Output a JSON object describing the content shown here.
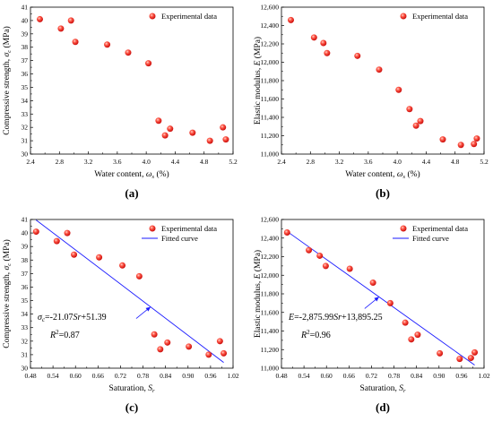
{
  "chart_data": [
    {
      "type": "scatter",
      "panel_label": "(a)",
      "xlabel_main": "Water content, ",
      "xlabel_symbol": "ω",
      "xlabel_sub": "s",
      "xlabel_unit": " (%)",
      "ylabel_main": "Compressive strength, ",
      "ylabel_symbol": "σ",
      "ylabel_sub": "c",
      "ylabel_unit": " (MPa)",
      "xlim": [
        2.4,
        5.2
      ],
      "ylim": [
        30,
        41
      ],
      "xticks": [
        "2.4",
        "2.8",
        "3.2",
        "3.6",
        "4.0",
        "4.4",
        "4.8",
        "5.2"
      ],
      "yticks": [
        "30",
        "31",
        "32",
        "33",
        "34",
        "35",
        "36",
        "37",
        "38",
        "39",
        "40",
        "41"
      ],
      "legend": [
        "Experimental data"
      ],
      "legend_position": "top-right",
      "series": [
        {
          "name": "Experimental data",
          "x": [
            2.53,
            2.82,
            2.96,
            3.02,
            3.46,
            3.75,
            4.03,
            4.17,
            4.26,
            4.33,
            4.64,
            4.88,
            5.06,
            5.1
          ],
          "y": [
            40.1,
            39.4,
            40.0,
            38.4,
            38.2,
            37.6,
            36.8,
            32.5,
            31.4,
            31.9,
            31.6,
            31.0,
            32.0,
            31.1
          ]
        }
      ]
    },
    {
      "type": "scatter",
      "panel_label": "(b)",
      "xlabel_main": "Water content, ",
      "xlabel_symbol": "ω",
      "xlabel_sub": "s",
      "xlabel_unit": " (%)",
      "ylabel_main": "Elastic modulus, ",
      "ylabel_symbol": "E",
      "ylabel_sub": "",
      "ylabel_unit": " (MPa)",
      "xlim": [
        2.4,
        5.2
      ],
      "ylim": [
        11000,
        12600
      ],
      "xticks": [
        "2.4",
        "2.8",
        "3.2",
        "3.6",
        "4.0",
        "4.4",
        "4.8",
        "5.2"
      ],
      "yticks": [
        "11,000",
        "11,200",
        "11,400",
        "11,600",
        "11,800",
        "12,000",
        "12,200",
        "12,400",
        "12,600"
      ],
      "legend": [
        "Experimental data"
      ],
      "legend_position": "top-right",
      "series": [
        {
          "name": "Experimental data",
          "x": [
            2.53,
            2.85,
            2.98,
            3.03,
            3.45,
            3.75,
            4.02,
            4.17,
            4.26,
            4.32,
            4.63,
            4.88,
            5.06,
            5.1
          ],
          "y": [
            12460,
            12270,
            12210,
            12100,
            12070,
            11920,
            11700,
            11490,
            11310,
            11360,
            11160,
            11100,
            11110,
            11170
          ]
        }
      ]
    },
    {
      "type": "scatter",
      "panel_label": "(c)",
      "xlabel_main": "Saturation, ",
      "xlabel_symbol": "S",
      "xlabel_sub": "r",
      "xlabel_unit": "",
      "ylabel_main": "Compressive strength, ",
      "ylabel_symbol": "σ",
      "ylabel_sub": "c",
      "ylabel_unit": " (MPa)",
      "xlim": [
        0.48,
        1.02
      ],
      "ylim": [
        30,
        41
      ],
      "xticks": [
        "0.48",
        "0.54",
        "0.60",
        "0.66",
        "0.72",
        "0.78",
        "0.84",
        "0.90",
        "0.96",
        "1.02"
      ],
      "yticks": [
        "30",
        "31",
        "32",
        "33",
        "34",
        "35",
        "36",
        "37",
        "38",
        "39",
        "40",
        "41"
      ],
      "legend": [
        "Experimental data",
        "Fitted curve"
      ],
      "legend_position": "top-right",
      "fit": {
        "slope": -21.07,
        "intercept": 51.39,
        "x_range": [
          0.495,
          0.995
        ]
      },
      "equation_text": "=-21.07",
      "equation_tail": "+51.39",
      "r2_text": "=0.87",
      "series": [
        {
          "name": "Experimental data",
          "x": [
            0.495,
            0.55,
            0.578,
            0.596,
            0.663,
            0.725,
            0.77,
            0.81,
            0.826,
            0.845,
            0.902,
            0.955,
            0.985,
            0.995
          ],
          "y": [
            40.1,
            39.4,
            40.0,
            38.4,
            38.2,
            37.6,
            36.8,
            32.5,
            31.4,
            31.9,
            31.6,
            31.0,
            32.0,
            31.1
          ]
        }
      ]
    },
    {
      "type": "scatter",
      "panel_label": "(d)",
      "xlabel_main": "Saturation, ",
      "xlabel_symbol": "S",
      "xlabel_sub": "r",
      "xlabel_unit": "",
      "ylabel_main": "Elastic modulus, ",
      "ylabel_symbol": "E",
      "ylabel_sub": "",
      "ylabel_unit": " (MPa)",
      "xlim": [
        0.48,
        1.02
      ],
      "ylim": [
        11000,
        12600
      ],
      "xticks": [
        "0.48",
        "0.54",
        "0.60",
        "0.66",
        "0.72",
        "0.78",
        "0.84",
        "0.90",
        "0.96",
        "1.02"
      ],
      "yticks": [
        "11,000",
        "11,200",
        "11,400",
        "11,600",
        "11,800",
        "12,000",
        "12,200",
        "12,400",
        "12,600"
      ],
      "legend": [
        "Experimental data",
        "Fitted curve"
      ],
      "legend_position": "top-right",
      "fit": {
        "slope": -2875.99,
        "intercept": 13895.25,
        "x_range": [
          0.495,
          0.995
        ]
      },
      "equation_text": "=-2,875.99",
      "equation_tail": "+13,895.25",
      "r2_text": "=0.96",
      "series": [
        {
          "name": "Experimental data",
          "x": [
            0.495,
            0.553,
            0.582,
            0.598,
            0.662,
            0.724,
            0.77,
            0.81,
            0.826,
            0.843,
            0.902,
            0.955,
            0.985,
            0.995
          ],
          "y": [
            12460,
            12270,
            12210,
            12100,
            12070,
            11920,
            11700,
            11490,
            11310,
            11360,
            11160,
            11100,
            11110,
            11170
          ]
        }
      ]
    }
  ],
  "colors": {
    "marker_center": "#ff8a80",
    "marker_edge": "#d40000",
    "fit_line": "#1a1aff",
    "axis": "#000000"
  }
}
